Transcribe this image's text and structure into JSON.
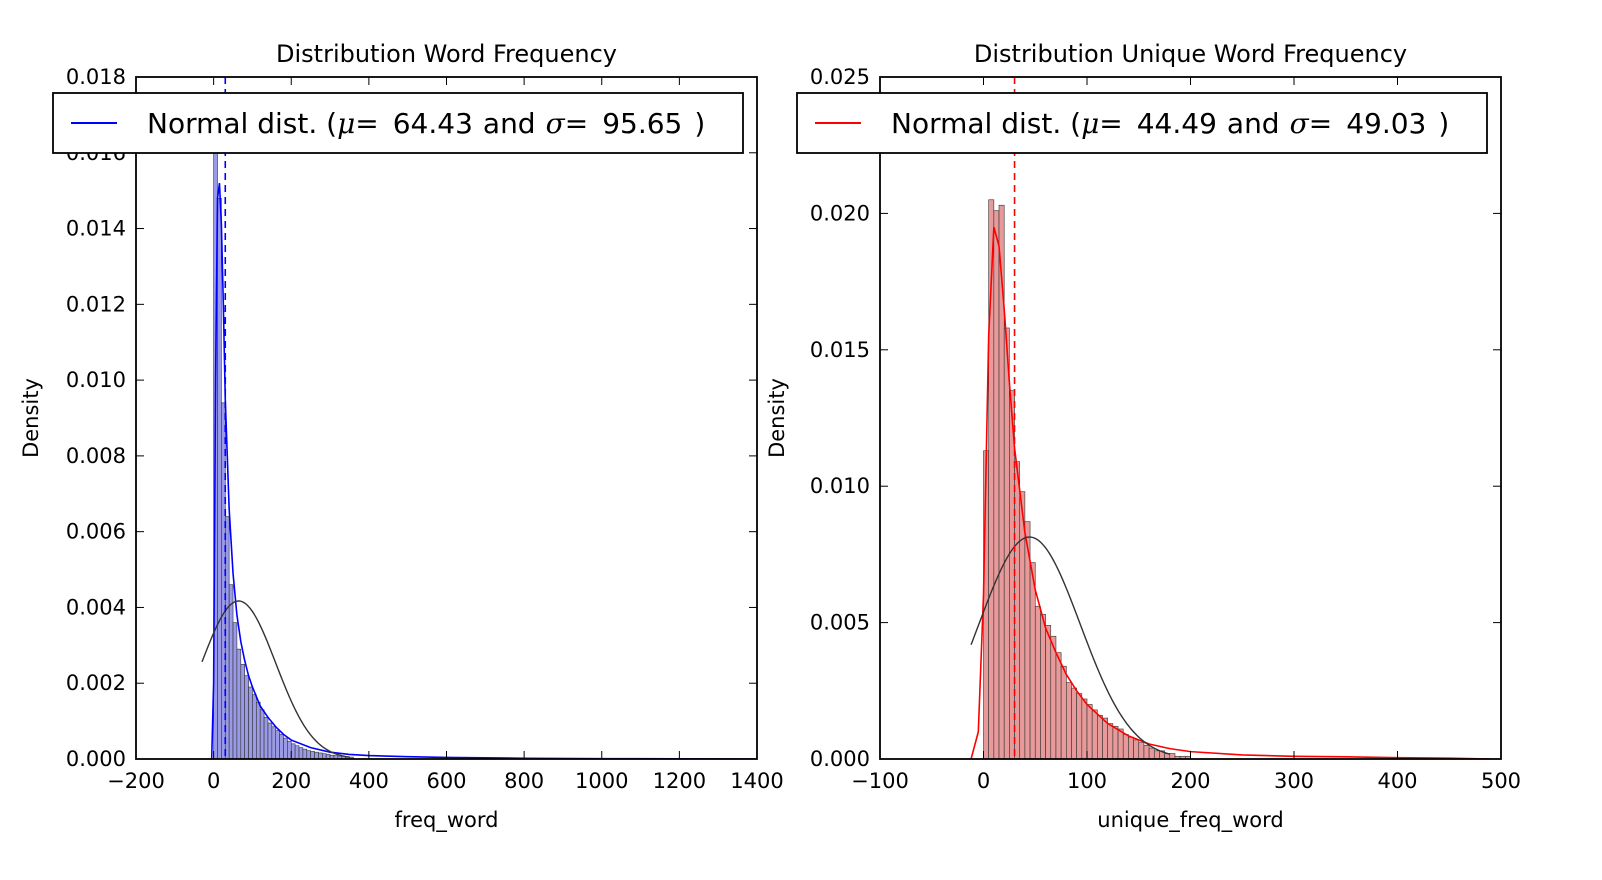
{
  "figure": {
    "background": "#ffffff"
  },
  "chart_data": [
    {
      "type": "histogram",
      "title": "Distribution Word Frequency",
      "xlabel": "freq_word",
      "ylabel": "Density",
      "xlim": [
        -200,
        1400
      ],
      "ylim": [
        0,
        0.018
      ],
      "xticks": [
        -200,
        0,
        200,
        400,
        600,
        800,
        1000,
        1200,
        1400
      ],
      "yticks": [
        0.0,
        0.002,
        0.004,
        0.006,
        0.008,
        0.01,
        0.012,
        0.014,
        0.016,
        0.018
      ],
      "xtick_labels": [
        "−200",
        "0",
        "200",
        "400",
        "600",
        "800",
        "1000",
        "1200",
        "1400"
      ],
      "ytick_labels": [
        "0.000",
        "0.002",
        "0.004",
        "0.006",
        "0.008",
        "0.010",
        "0.012",
        "0.014",
        "0.016",
        "0.018"
      ],
      "color": "#0000ff",
      "bar_fill": "#9a9ae6",
      "bin_width": 10,
      "bins_x": [
        0,
        10,
        20,
        30,
        40,
        50,
        60,
        70,
        80,
        90,
        100,
        110,
        120,
        130,
        140,
        150,
        160,
        170,
        180,
        190,
        200,
        210,
        220,
        230,
        240,
        250,
        260,
        270,
        280,
        290,
        300,
        310,
        320,
        330,
        340,
        350
      ],
      "bins_density": [
        0.0161,
        0.0148,
        0.0094,
        0.0064,
        0.0046,
        0.0036,
        0.0029,
        0.0025,
        0.0022,
        0.0019,
        0.0017,
        0.0015,
        0.0013,
        0.0011,
        0.00095,
        0.00085,
        0.00075,
        0.00065,
        0.00055,
        0.00047,
        0.0004,
        0.00035,
        0.0003,
        0.00026,
        0.00022,
        0.0002,
        0.00018,
        0.00016,
        0.00014,
        0.00012,
        0.0001,
        9e-05,
        8e-05,
        7e-05,
        6e-05,
        5e-05
      ],
      "kde": {
        "x": [
          -5,
          0,
          5,
          10,
          15,
          20,
          25,
          30,
          40,
          50,
          60,
          70,
          80,
          90,
          100,
          120,
          140,
          160,
          180,
          200,
          250,
          300,
          350,
          400,
          500,
          600,
          800,
          1000,
          1200,
          1400
        ],
        "y": [
          0.0,
          0.002,
          0.01,
          0.0148,
          0.0152,
          0.0141,
          0.012,
          0.0095,
          0.0066,
          0.0049,
          0.0038,
          0.0031,
          0.0026,
          0.0022,
          0.0019,
          0.0014,
          0.0011,
          0.00085,
          0.00065,
          0.0005,
          0.0003,
          0.00018,
          0.00012,
          9e-05,
          6e-05,
          4e-05,
          2e-05,
          1e-05,
          5e-06,
          0.0
        ]
      },
      "normal_fit": {
        "mu": 64.43,
        "sigma": 95.65,
        "x_start": -30,
        "x_end": 350,
        "color": "#333333"
      },
      "vline_x": 30,
      "legend": {
        "label_prefix": "Normal dist. (",
        "mu_symbol": "μ",
        "equals": "=",
        "mu_value": "64.43",
        "and_text": "and",
        "sigma_symbol": "σ",
        "sigma_value": "95.65",
        "label_suffix": ")",
        "placement": "upper center"
      }
    },
    {
      "type": "histogram",
      "title": "Distribution Unique Word Frequency",
      "xlabel": "unique_freq_word",
      "ylabel": "Density",
      "xlim": [
        -100,
        500
      ],
      "ylim": [
        0,
        0.025
      ],
      "xticks": [
        -100,
        0,
        100,
        200,
        300,
        400,
        500
      ],
      "yticks": [
        0.0,
        0.005,
        0.01,
        0.015,
        0.02,
        0.025
      ],
      "xtick_labels": [
        "−100",
        "0",
        "100",
        "200",
        "300",
        "400",
        "500"
      ],
      "ytick_labels": [
        "0.000",
        "0.005",
        "0.010",
        "0.015",
        "0.020",
        "0.025"
      ],
      "color": "#ff0000",
      "bar_fill": "#e89a9a",
      "bin_width": 5,
      "bins_x": [
        0,
        5,
        10,
        15,
        20,
        25,
        30,
        35,
        40,
        45,
        50,
        55,
        60,
        65,
        70,
        75,
        80,
        85,
        90,
        95,
        100,
        105,
        110,
        115,
        120,
        125,
        130,
        135,
        140,
        145,
        150,
        155,
        160,
        165,
        170,
        175,
        180,
        185,
        190,
        195
      ],
      "bins_density": [
        0.0113,
        0.0205,
        0.0201,
        0.0203,
        0.0158,
        0.0135,
        0.0109,
        0.0098,
        0.0087,
        0.0072,
        0.0056,
        0.0053,
        0.0049,
        0.0045,
        0.0039,
        0.0034,
        0.0028,
        0.0026,
        0.0024,
        0.0022,
        0.002,
        0.0018,
        0.0016,
        0.0015,
        0.0013,
        0.0012,
        0.0011,
        0.0009,
        0.0008,
        0.0007,
        0.0006,
        0.0005,
        0.0004,
        0.0003,
        0.0003,
        0.0002,
        0.0002,
        0.0001,
        0.0001,
        0.0001
      ],
      "kde": {
        "x": [
          -12,
          -5,
          0,
          5,
          10,
          15,
          20,
          25,
          30,
          40,
          50,
          60,
          70,
          80,
          90,
          100,
          120,
          140,
          160,
          180,
          200,
          250,
          300,
          350,
          400,
          450,
          490
        ],
        "y": [
          0.0,
          0.001,
          0.006,
          0.0155,
          0.0195,
          0.0188,
          0.0165,
          0.0138,
          0.0114,
          0.0083,
          0.0062,
          0.0048,
          0.0039,
          0.0031,
          0.0025,
          0.002,
          0.0013,
          0.00085,
          0.00055,
          0.00038,
          0.00027,
          0.00015,
          0.0001,
          8e-05,
          5e-05,
          3e-05,
          0.0
        ]
      },
      "normal_fit": {
        "mu": 44.49,
        "sigma": 49.03,
        "x_start": -12,
        "x_end": 180,
        "color": "#333333"
      },
      "vline_x": 30,
      "legend": {
        "label_prefix": "Normal dist. (",
        "mu_symbol": "μ",
        "equals": "=",
        "mu_value": "44.49",
        "and_text": "and",
        "sigma_symbol": "σ",
        "sigma_value": "49.03",
        "label_suffix": ")",
        "placement": "upper center"
      }
    }
  ]
}
